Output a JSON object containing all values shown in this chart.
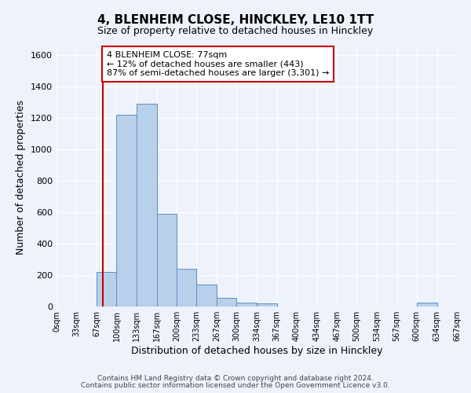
{
  "title": "4, BLENHEIM CLOSE, HINCKLEY, LE10 1TT",
  "subtitle": "Size of property relative to detached houses in Hinckley",
  "xlabel": "Distribution of detached houses by size in Hinckley",
  "ylabel": "Number of detached properties",
  "bin_edges": [
    0,
    33,
    67,
    100,
    133,
    167,
    200,
    233,
    267,
    300,
    334,
    367,
    400,
    434,
    467,
    500,
    534,
    567,
    600,
    634,
    667
  ],
  "bar_heights": [
    0,
    0,
    220,
    1220,
    1290,
    590,
    240,
    140,
    55,
    25,
    20,
    0,
    0,
    0,
    0,
    0,
    0,
    0,
    25,
    0
  ],
  "bar_color": "#b8d0ea",
  "bar_edge_color": "#5b8ec4",
  "vline_x": 77,
  "vline_color": "#cc0000",
  "annotation_text": "4 BLENHEIM CLOSE: 77sqm\n← 12% of detached houses are smaller (443)\n87% of semi-detached houses are larger (3,301) →",
  "annotation_box_color": "#ffffff",
  "annotation_box_edge": "#cc0000",
  "ylim": [
    0,
    1650
  ],
  "yticks": [
    0,
    200,
    400,
    600,
    800,
    1000,
    1200,
    1400,
    1600
  ],
  "tick_labels": [
    "0sqm",
    "33sqm",
    "67sqm",
    "100sqm",
    "133sqm",
    "167sqm",
    "200sqm",
    "233sqm",
    "267sqm",
    "300sqm",
    "334sqm",
    "367sqm",
    "400sqm",
    "434sqm",
    "467sqm",
    "500sqm",
    "534sqm",
    "567sqm",
    "600sqm",
    "634sqm",
    "667sqm"
  ],
  "footer_line1": "Contains HM Land Registry data © Crown copyright and database right 2024.",
  "footer_line2": "Contains public sector information licensed under the Open Government Licence v3.0.",
  "background_color": "#eef2fb",
  "plot_bg_color": "#eef2fb",
  "grid_color": "#ffffff"
}
